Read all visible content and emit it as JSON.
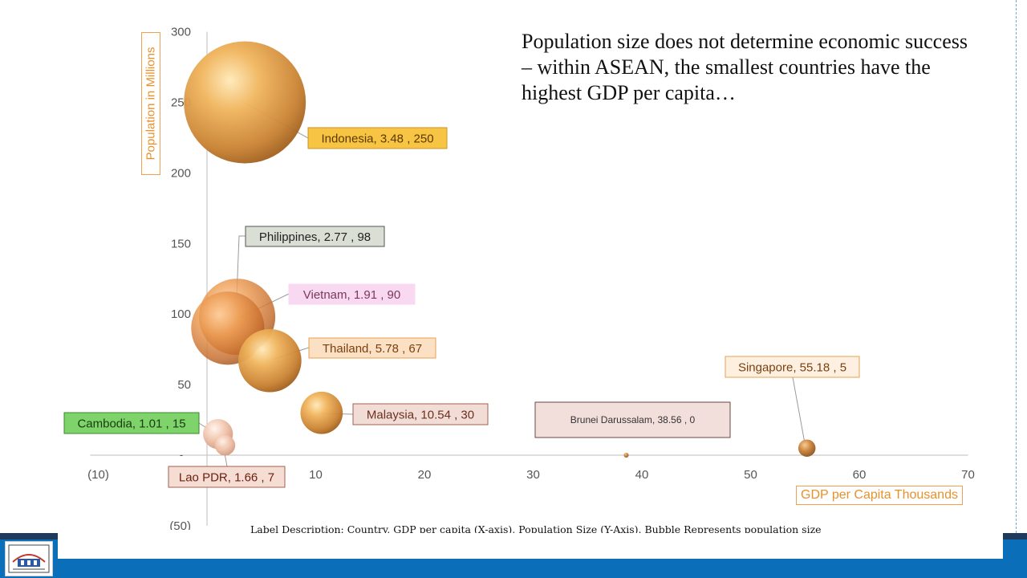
{
  "headline": "Population size does not determine economic success – within ASEAN, the smallest countries have the highest GDP per capita…",
  "y_axis_title": "Population in Millions",
  "x_axis_title": "GDP per Capita Thousands",
  "description": {
    "label": "Label Description: ",
    "text": "Country, GDP per capita (X-axis), Population Size (Y-Axis).  Bubble Represents population size"
  },
  "chart_data": {
    "type": "bubble",
    "xlabel": "GDP per Capita Thousands",
    "ylabel": "Population in Millions",
    "xlim": [
      -10,
      70
    ],
    "ylim": [
      -50,
      300
    ],
    "x_ticks": [
      "(10)",
      "10",
      "20",
      "30",
      "40",
      "50",
      "60",
      "70"
    ],
    "x_tick_values": [
      -10,
      10,
      20,
      30,
      40,
      50,
      60,
      70
    ],
    "y_ticks": [
      "(50)",
      "50",
      "100",
      "150",
      "200",
      "250",
      "300"
    ],
    "y_tick_values": [
      -50,
      50,
      100,
      150,
      200,
      250,
      300
    ],
    "points": [
      {
        "country": "Indonesia",
        "x": 3.48,
        "y": 250,
        "size": 250,
        "label": "Indonesia,  3.48 ,  250",
        "label_fill": "#f7c443",
        "label_border": "#c9952a",
        "label_color": "#5a3a00"
      },
      {
        "country": "Philippines",
        "x": 2.77,
        "y": 98,
        "size": 98,
        "label": "Philippines,  2.77 ,  98",
        "label_fill": "#d9dfd4",
        "label_border": "#555555",
        "label_color": "#222222"
      },
      {
        "country": "Vietnam",
        "x": 1.91,
        "y": 90,
        "size": 90,
        "label": "Vietnam,  1.91 ,  90",
        "label_fill": "#f9d9f2",
        "label_border": "#f9d9f2",
        "label_color": "#7a3a5a"
      },
      {
        "country": "Thailand",
        "x": 5.78,
        "y": 67,
        "size": 67,
        "label": "Thailand,  5.78 ,  67",
        "label_fill": "#fbe0c4",
        "label_border": "#e8a050",
        "label_color": "#7a4010"
      },
      {
        "country": "Malaysia",
        "x": 10.54,
        "y": 30,
        "size": 30,
        "label": "Malaysia,  10.54 ,  30",
        "label_fill": "#f2ddd6",
        "label_border": "#a06050",
        "label_color": "#6a3020"
      },
      {
        "country": "Cambodia",
        "x": 1.01,
        "y": 15,
        "size": 15,
        "label": "Cambodia,  1.01 ,  15",
        "label_fill": "#7ed36a",
        "label_border": "#3a8a2a",
        "label_color": "#1a3a10"
      },
      {
        "country": "Lao PDR",
        "x": 1.66,
        "y": 7,
        "size": 7,
        "label": "Lao PDR,  1.66 ,  7",
        "label_fill": "#f6ddd3",
        "label_border": "#a06050",
        "label_color": "#6a2010"
      },
      {
        "country": "Brunei Darussalam",
        "x": 38.56,
        "y": 0,
        "size": 0.4,
        "label": "Brunei Darussalam,  38.56 ,  0",
        "label_fill": "#f2dedb",
        "label_border": "#6a4a40",
        "label_color": "#333333"
      },
      {
        "country": "Singapore",
        "x": 55.18,
        "y": 5,
        "size": 5,
        "label": "Singapore,  55.18 ,  5",
        "label_fill": "#fdf0e0",
        "label_border": "#e8a050",
        "label_color": "#7a4010"
      }
    ]
  }
}
